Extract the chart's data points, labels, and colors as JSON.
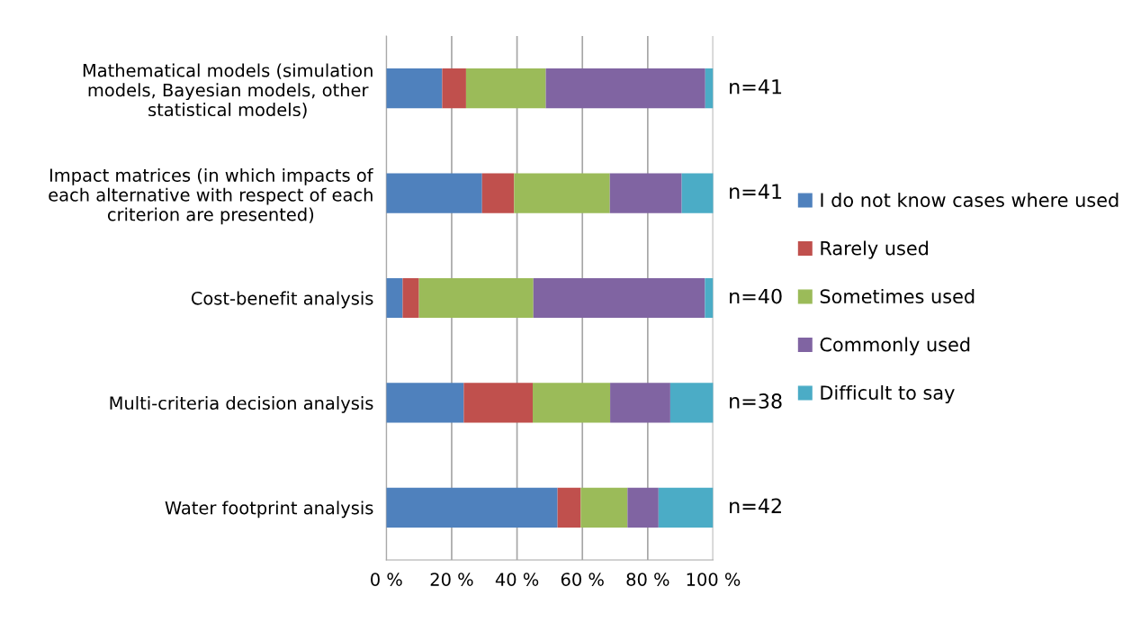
{
  "chart_data": {
    "type": "bar",
    "orientation": "horizontal",
    "stacked": true,
    "categories": [
      "Mathematical models (simulation models, Bayesian models, other statistical models)",
      "Impact matrices (in which impacts of each alternative with respect of each criterion are presented)",
      "Cost-benefit analysis",
      "Multi-criteria decision analysis",
      "Water footprint analysis"
    ],
    "series": [
      {
        "name": "I do not know cases where used",
        "color": "#4f81bd",
        "values": [
          17.1,
          29.3,
          5.0,
          23.7,
          52.4
        ]
      },
      {
        "name": "Rarely used",
        "color": "#c0504d",
        "values": [
          7.3,
          9.8,
          5.0,
          21.1,
          7.1
        ]
      },
      {
        "name": "Sometimes used",
        "color": "#9bbb59",
        "values": [
          24.4,
          29.3,
          35.0,
          23.7,
          14.3
        ]
      },
      {
        "name": "Commonly used",
        "color": "#8064a2",
        "values": [
          48.8,
          22.0,
          52.5,
          18.4,
          9.5
        ]
      },
      {
        "name": "Difficult to say",
        "color": "#4bacc6",
        "values": [
          2.4,
          9.8,
          2.5,
          13.2,
          16.7
        ]
      }
    ],
    "xlim": [
      0,
      100
    ],
    "xticks": [
      {
        "value": 0,
        "label": "0 %"
      },
      {
        "value": 20,
        "label": "20 %"
      },
      {
        "value": 40,
        "label": "40 %"
      },
      {
        "value": 60,
        "label": "60 %"
      },
      {
        "value": 80,
        "label": "80 %"
      },
      {
        "value": 100,
        "label": "100 %"
      }
    ],
    "grid": "x",
    "legend": "right",
    "annotations": [
      "n=41",
      "n=41",
      "n=40",
      "n=38",
      "n=42"
    ]
  }
}
